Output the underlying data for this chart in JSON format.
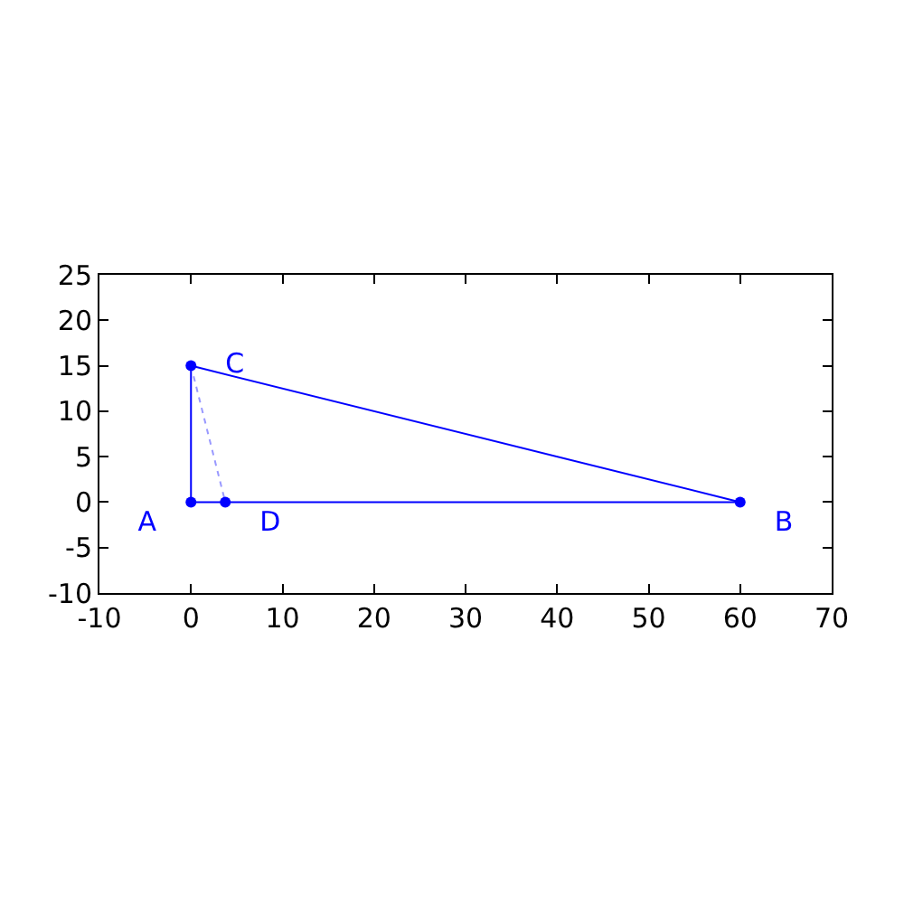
{
  "chart_data": {
    "type": "line",
    "xlim": [
      -10,
      70
    ],
    "xticks": [
      -10,
      0,
      10,
      20,
      30,
      40,
      50,
      60,
      70
    ],
    "ylim": [
      -10,
      25
    ],
    "yticks": [
      -10,
      -5,
      0,
      5,
      10,
      15,
      20,
      25
    ],
    "legend": false,
    "series": [
      {
        "x": [
          0,
          60
        ],
        "values": [
          0,
          0
        ],
        "color": "#0000ff",
        "marker": "none",
        "line_style": "solid"
      },
      {
        "x": [
          0,
          60
        ],
        "values": [
          15,
          0
        ],
        "color": "#0000ff",
        "marker": "none",
        "line_style": "solid"
      },
      {
        "x": [
          0,
          0
        ],
        "values": [
          0,
          15
        ],
        "color": "#0000ff",
        "marker": "none",
        "line_style": "solid"
      },
      {
        "x": [
          0,
          3.75
        ],
        "values": [
          15,
          0
        ],
        "color": "#9999ff",
        "marker": "none",
        "line_style": "dotted"
      },
      {
        "type": "scatter",
        "name": "A",
        "x": [
          0
        ],
        "values": [
          0
        ],
        "color": "#0000ff",
        "marker": "circle"
      },
      {
        "type": "scatter",
        "name": "B",
        "x": [
          60
        ],
        "values": [
          0
        ],
        "color": "#0000ff",
        "marker": "circle"
      },
      {
        "type": "scatter",
        "name": "C",
        "x": [
          0
        ],
        "values": [
          15
        ],
        "color": "#0000ff",
        "marker": "circle"
      },
      {
        "type": "scatter",
        "name": "D",
        "x": [
          3.75
        ],
        "values": [
          0
        ],
        "color": "#0000ff",
        "marker": "circle"
      }
    ]
  }
}
